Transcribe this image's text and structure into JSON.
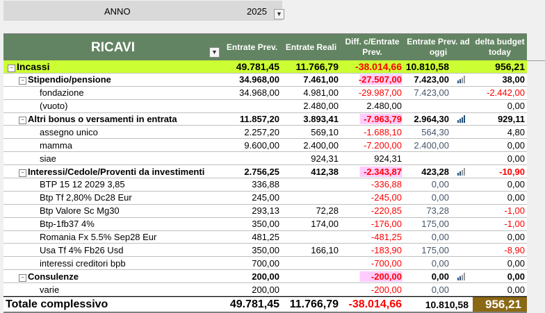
{
  "filter": {
    "label": "ANNO",
    "value": "2025"
  },
  "header": {
    "title": "RICAVI",
    "columns": [
      "Entrate Prev.",
      "Entrate Reali",
      "Diff. c/Entrate Prev.",
      "Entrate Prev. ad oggi",
      "delta budget today"
    ]
  },
  "rows": [
    {
      "label": "Incassi",
      "level": 0,
      "values": [
        "49.781,45",
        "11.766,79",
        "-38.014,66",
        "10.810,58",
        "956,21"
      ],
      "chart": false
    },
    {
      "label": "Stipendio/pensione",
      "level": 1,
      "values": [
        "34.968,00",
        "7.461,00",
        "-27.507,00",
        "7.423,00",
        "38,00"
      ],
      "chart": true
    },
    {
      "label": "fondazione",
      "level": 2,
      "values": [
        "34.968,00",
        "4.981,00",
        "-29.987,00",
        "7.423,00",
        "-2.442,00"
      ]
    },
    {
      "label": "(vuoto)",
      "level": 2,
      "values": [
        "",
        "2.480,00",
        "2.480,00",
        "",
        "0,00"
      ]
    },
    {
      "label": "Altri bonus o versamenti in entrata",
      "level": 1,
      "values": [
        "11.857,20",
        "3.893,41",
        "-7.963,79",
        "2.964,30",
        "929,11"
      ],
      "chart": true
    },
    {
      "label": "assegno unico",
      "level": 2,
      "values": [
        "2.257,20",
        "569,10",
        "-1.688,10",
        "564,30",
        "4,80"
      ]
    },
    {
      "label": "mamma",
      "level": 2,
      "values": [
        "9.600,00",
        "2.400,00",
        "-7.200,00",
        "2.400,00",
        "0,00"
      ]
    },
    {
      "label": "siae",
      "level": 2,
      "values": [
        "",
        "924,31",
        "924,31",
        "",
        "0,00"
      ]
    },
    {
      "label": "Interessi/Cedole/Proventi da investimenti",
      "level": 1,
      "values": [
        "2.756,25",
        "412,38",
        "-2.343,87",
        "423,28",
        "-10,90"
      ],
      "chart": true
    },
    {
      "label": "BTP 15 12 2029 3,85",
      "level": 2,
      "values": [
        "336,88",
        "",
        "-336,88",
        "0,00",
        "0,00"
      ]
    },
    {
      "label": "Btp Tf 2,80% Dc28 Eur",
      "level": 2,
      "values": [
        "245,00",
        "",
        "-245,00",
        "0,00",
        "0,00"
      ]
    },
    {
      "label": "Btp Valore Sc Mg30",
      "level": 2,
      "values": [
        "293,13",
        "72,28",
        "-220,85",
        "73,28",
        "-1,00"
      ]
    },
    {
      "label": "Btp-1fb37 4%",
      "level": 2,
      "values": [
        "350,00",
        "174,00",
        "-176,00",
        "175,00",
        "-1,00"
      ]
    },
    {
      "label": "Romania Fx 5.5% Sep28 Eur",
      "level": 2,
      "values": [
        "481,25",
        "",
        "-481,25",
        "0,00",
        "0,00"
      ]
    },
    {
      "label": "Usa Tf 4% Fb26 Usd",
      "level": 2,
      "values": [
        "350,00",
        "166,10",
        "-183,90",
        "175,00",
        "-8,90"
      ]
    },
    {
      "label": "interessi creditori bpb",
      "level": 2,
      "values": [
        "700,00",
        "",
        "-700,00",
        "0,00",
        "0,00"
      ]
    },
    {
      "label": "Consulenze",
      "level": 1,
      "values": [
        "200,00",
        "",
        "-200,00",
        "0,00",
        "0,00"
      ],
      "chart": true
    },
    {
      "label": "varie",
      "level": 2,
      "values": [
        "200,00",
        "",
        "-200,00",
        "0,00",
        "0,00"
      ]
    }
  ],
  "total": {
    "label": "Totale complessivo",
    "values": [
      "49.781,45",
      "11.766,79",
      "-38.014,66",
      "10.810,58",
      "956,21"
    ]
  },
  "colors": {
    "header_bg": "#628462",
    "incassi_bg": "#ccff33",
    "negative": "#ff0000",
    "total_highlight": "#8b6914",
    "diff_highlight": "#ffccff"
  }
}
